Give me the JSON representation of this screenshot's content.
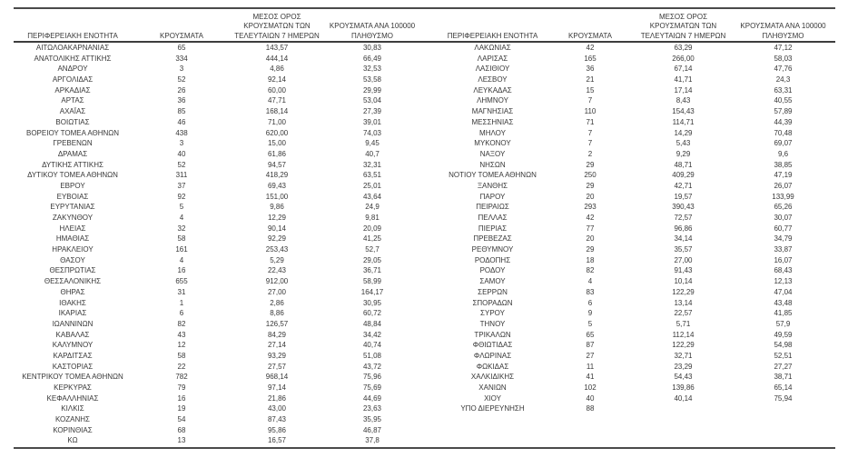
{
  "colors": {
    "text": "#383838",
    "rule": "#4a4a4a",
    "background": "#ffffff"
  },
  "table": {
    "headers": {
      "region": "ΠΕΡΙΦΕΡΕΙΑΚΗ ΕΝΟΤΗΤΑ",
      "cases": "ΚΡΟΥΣΜΑΤΑ",
      "avg7_line1": "ΜΕΣΟΣ ΟΡΟΣ",
      "avg7_line2": "ΚΡΟΥΣΜΑΤΩΝ ΤΩΝ",
      "avg7_line3": "ΤΕΛΕΥΤΑΙΩΝ 7 ΗΜΕΡΩΝ",
      "per100k_line1": "ΚΡΟΥΣΜΑΤΑ ΑΝΑ 100000",
      "per100k_line2": "ΠΛΗΘΥΣΜΟ"
    },
    "left_rows": [
      [
        "ΑΙΤΩΛΟΑΚΑΡΝΑΝΙΑΣ",
        "65",
        "143,57",
        "30,83"
      ],
      [
        "ΑΝΑΤΟΛΙΚΗΣ ΑΤΤΙΚΗΣ",
        "334",
        "444,14",
        "66,49"
      ],
      [
        "ΑΝΔΡΟΥ",
        "3",
        "4,86",
        "32,53"
      ],
      [
        "ΑΡΓΟΛΙΔΑΣ",
        "52",
        "92,14",
        "53,58"
      ],
      [
        "ΑΡΚΑΔΙΑΣ",
        "26",
        "60,00",
        "29,99"
      ],
      [
        "ΑΡΤΑΣ",
        "36",
        "47,71",
        "53,04"
      ],
      [
        "ΑΧΑΪΑΣ",
        "85",
        "168,14",
        "27,39"
      ],
      [
        "ΒΟΙΩΤΙΑΣ",
        "46",
        "71,00",
        "39,01"
      ],
      [
        "ΒΟΡΕΙΟΥ ΤΟΜΕΑ ΑΘΗΝΩΝ",
        "438",
        "620,00",
        "74,03"
      ],
      [
        "ΓΡΕΒΕΝΩΝ",
        "3",
        "15,00",
        "9,45"
      ],
      [
        "ΔΡΑΜΑΣ",
        "40",
        "61,86",
        "40,7"
      ],
      [
        "ΔΥΤΙΚΗΣ ΑΤΤΙΚΗΣ",
        "52",
        "94,57",
        "32,31"
      ],
      [
        "ΔΥΤΙΚΟΥ ΤΟΜΕΑ ΑΘΗΝΩΝ",
        "311",
        "418,29",
        "63,51"
      ],
      [
        "ΕΒΡΟΥ",
        "37",
        "69,43",
        "25,01"
      ],
      [
        "ΕΥΒΟΙΑΣ",
        "92",
        "151,00",
        "43,64"
      ],
      [
        "ΕΥΡΥΤΑΝΙΑΣ",
        "5",
        "9,86",
        "24,9"
      ],
      [
        "ΖΑΚΥΝΘΟΥ",
        "4",
        "12,29",
        "9,81"
      ],
      [
        "ΗΛΕΙΑΣ",
        "32",
        "90,14",
        "20,09"
      ],
      [
        "ΗΜΑΘΙΑΣ",
        "58",
        "92,29",
        "41,25"
      ],
      [
        "ΗΡΑΚΛΕΙΟΥ",
        "161",
        "253,43",
        "52,7"
      ],
      [
        "ΘΑΣΟΥ",
        "4",
        "5,29",
        "29,05"
      ],
      [
        "ΘΕΣΠΡΩΤΙΑΣ",
        "16",
        "22,43",
        "36,71"
      ],
      [
        "ΘΕΣΣΑΛΟΝΙΚΗΣ",
        "655",
        "912,00",
        "58,99"
      ],
      [
        "ΘΗΡΑΣ",
        "31",
        "27,00",
        "164,17"
      ],
      [
        "ΙΘΑΚΗΣ",
        "1",
        "2,86",
        "30,95"
      ],
      [
        "ΙΚΑΡΙΑΣ",
        "6",
        "8,86",
        "60,72"
      ],
      [
        "ΙΩΑΝΝΙΝΩΝ",
        "82",
        "126,57",
        "48,84"
      ],
      [
        "ΚΑΒΑΛΑΣ",
        "43",
        "84,29",
        "34,42"
      ],
      [
        "ΚΑΛΥΜΝΟΥ",
        "12",
        "27,14",
        "40,74"
      ],
      [
        "ΚΑΡΔΙΤΣΑΣ",
        "58",
        "93,29",
        "51,08"
      ],
      [
        "ΚΑΣΤΟΡΙΑΣ",
        "22",
        "27,57",
        "43,72"
      ],
      [
        "ΚΕΝΤΡΙΚΟΥ ΤΟΜΕΑ ΑΘΗΝΩΝ",
        "782",
        "968,14",
        "75,96"
      ],
      [
        "ΚΕΡΚΥΡΑΣ",
        "79",
        "97,14",
        "75,69"
      ],
      [
        "ΚΕΦΑΛΛΗΝΙΑΣ",
        "16",
        "21,86",
        "44,69"
      ],
      [
        "ΚΙΛΚΙΣ",
        "19",
        "43,00",
        "23,63"
      ],
      [
        "ΚΟΖΑΝΗΣ",
        "54",
        "87,43",
        "35,95"
      ],
      [
        "ΚΟΡΙΝΘΙΑΣ",
        "68",
        "95,86",
        "46,87"
      ],
      [
        "ΚΩ",
        "13",
        "16,57",
        "37,8"
      ]
    ],
    "right_rows": [
      [
        "ΛΑΚΩΝΙΑΣ",
        "42",
        "63,29",
        "47,12"
      ],
      [
        "ΛΑΡΙΣΑΣ",
        "165",
        "266,00",
        "58,03"
      ],
      [
        "ΛΑΣΙΘΙΟΥ",
        "36",
        "67,14",
        "47,76"
      ],
      [
        "ΛΕΣΒΟΥ",
        "21",
        "41,71",
        "24,3"
      ],
      [
        "ΛΕΥΚΑΔΑΣ",
        "15",
        "17,14",
        "63,31"
      ],
      [
        "ΛΗΜΝΟΥ",
        "7",
        "8,43",
        "40,55"
      ],
      [
        "ΜΑΓΝΗΣΙΑΣ",
        "110",
        "154,43",
        "57,89"
      ],
      [
        "ΜΕΣΣΗΝΙΑΣ",
        "71",
        "114,71",
        "44,39"
      ],
      [
        "ΜΗΛΟΥ",
        "7",
        "14,29",
        "70,48"
      ],
      [
        "ΜΥΚΟΝΟΥ",
        "7",
        "5,43",
        "69,07"
      ],
      [
        "ΝΑΞΟΥ",
        "2",
        "9,29",
        "9,6"
      ],
      [
        "ΝΗΣΩΝ",
        "29",
        "48,71",
        "38,85"
      ],
      [
        "ΝΟΤΙΟΥ ΤΟΜΕΑ ΑΘΗΝΩΝ",
        "250",
        "409,29",
        "47,19"
      ],
      [
        "ΞΑΝΘΗΣ",
        "29",
        "42,71",
        "26,07"
      ],
      [
        "ΠΑΡΟΥ",
        "20",
        "19,57",
        "133,99"
      ],
      [
        "ΠΕΙΡΑΙΩΣ",
        "293",
        "390,43",
        "65,26"
      ],
      [
        "ΠΕΛΛΑΣ",
        "42",
        "72,57",
        "30,07"
      ],
      [
        "ΠΙΕΡΙΑΣ",
        "77",
        "96,86",
        "60,77"
      ],
      [
        "ΠΡΕΒΕΖΑΣ",
        "20",
        "34,14",
        "34,79"
      ],
      [
        "ΡΕΘΥΜΝΟΥ",
        "29",
        "35,57",
        "33,87"
      ],
      [
        "ΡΟΔΟΠΗΣ",
        "18",
        "27,00",
        "16,07"
      ],
      [
        "ΡΟΔΟΥ",
        "82",
        "91,43",
        "68,43"
      ],
      [
        "ΣΑΜΟΥ",
        "4",
        "10,14",
        "12,13"
      ],
      [
        "ΣΕΡΡΩΝ",
        "83",
        "122,29",
        "47,04"
      ],
      [
        "ΣΠΟΡΑΔΩΝ",
        "6",
        "13,14",
        "43,48"
      ],
      [
        "ΣΥΡΟΥ",
        "9",
        "22,57",
        "41,85"
      ],
      [
        "ΤΗΝΟΥ",
        "5",
        "5,71",
        "57,9"
      ],
      [
        "ΤΡΙΚΑΛΩΝ",
        "65",
        "112,14",
        "49,59"
      ],
      [
        "ΦΘΙΩΤΙΔΑΣ",
        "87",
        "122,29",
        "54,98"
      ],
      [
        "ΦΛΩΡΙΝΑΣ",
        "27",
        "32,71",
        "52,51"
      ],
      [
        "ΦΩΚΙΔΑΣ",
        "11",
        "23,29",
        "27,27"
      ],
      [
        "ΧΑΛΚΙΔΙΚΗΣ",
        "41",
        "54,43",
        "38,71"
      ],
      [
        "ΧΑΝΙΩΝ",
        "102",
        "139,86",
        "65,14"
      ],
      [
        "ΧΙΟΥ",
        "40",
        "40,14",
        "75,94"
      ],
      [
        "ΥΠΟ ΔΙΕΡΕΥΝΗΣΗ",
        "88",
        "",
        ""
      ]
    ]
  }
}
